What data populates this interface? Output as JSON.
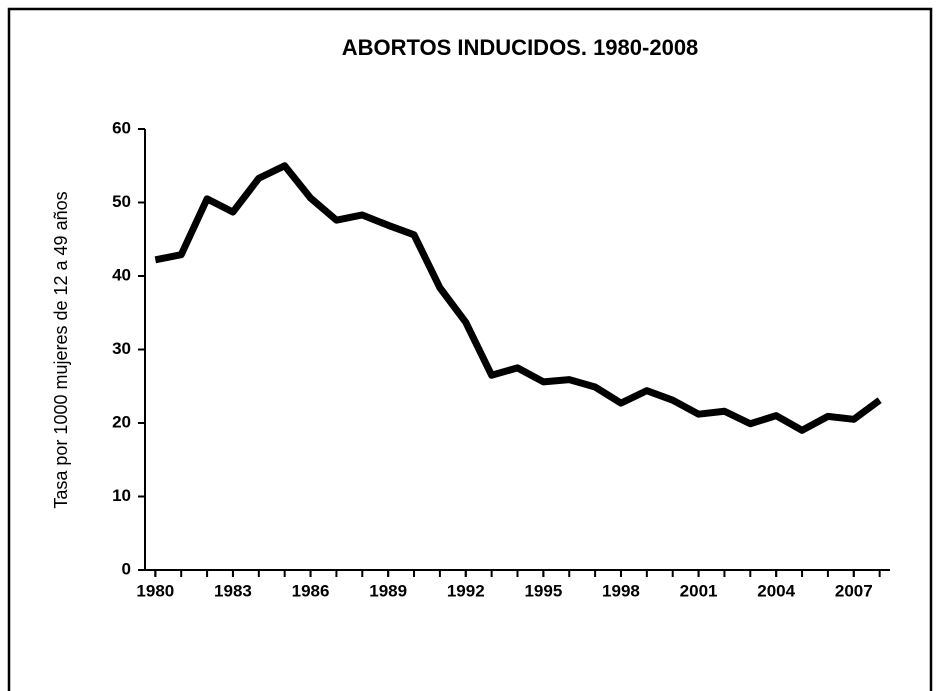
{
  "chart_data": {
    "type": "line",
    "title": "ABORTOS INDUCIDOS. 1980-2008",
    "ylabel": "Tasa por 1000 mujeres de 12 a 49 años",
    "x": [
      1980,
      1981,
      1982,
      1983,
      1984,
      1985,
      1986,
      1987,
      1988,
      1989,
      1990,
      1991,
      1992,
      1993,
      1994,
      1995,
      1996,
      1997,
      1998,
      1999,
      2000,
      2001,
      2002,
      2003,
      2004,
      2005,
      2006,
      2007,
      2008
    ],
    "series": [
      {
        "color": "#000000",
        "values": [
          42.2,
          42.9,
          50.5,
          48.7,
          53.3,
          55.0,
          50.6,
          47.6,
          48.3,
          46.9,
          45.6,
          38.4,
          33.7,
          26.5,
          27.5,
          25.6,
          25.9,
          24.9,
          22.7,
          24.4,
          23.1,
          21.2,
          21.6,
          19.9,
          21.0,
          19.0,
          20.9,
          20.5,
          23.1
        ]
      }
    ],
    "xlim": [
      1979.6,
      2008.4
    ],
    "xticks": [
      1980,
      1983,
      1986,
      1989,
      1992,
      1995,
      1998,
      2001,
      2004,
      2007
    ],
    "ylim": [
      0,
      60
    ],
    "yticks": [
      0,
      10,
      20,
      30,
      40,
      50,
      60
    ]
  }
}
